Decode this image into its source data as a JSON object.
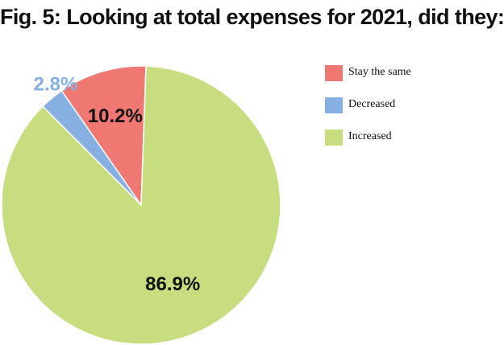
{
  "chart_data": {
    "type": "pie",
    "title": "Fig. 5: Looking at total expenses for 2021, did they:",
    "slices": [
      {
        "name": "Stay the same",
        "value": 10.2,
        "label": "10.2%",
        "color": "#ef7872"
      },
      {
        "name": "Decreased",
        "value": 2.8,
        "label": "2.8%",
        "color": "#86b0e1"
      },
      {
        "name": "Increased",
        "value": 86.9,
        "label": "86.9%",
        "color": "#c7dd80"
      }
    ],
    "legend_position": "right"
  }
}
